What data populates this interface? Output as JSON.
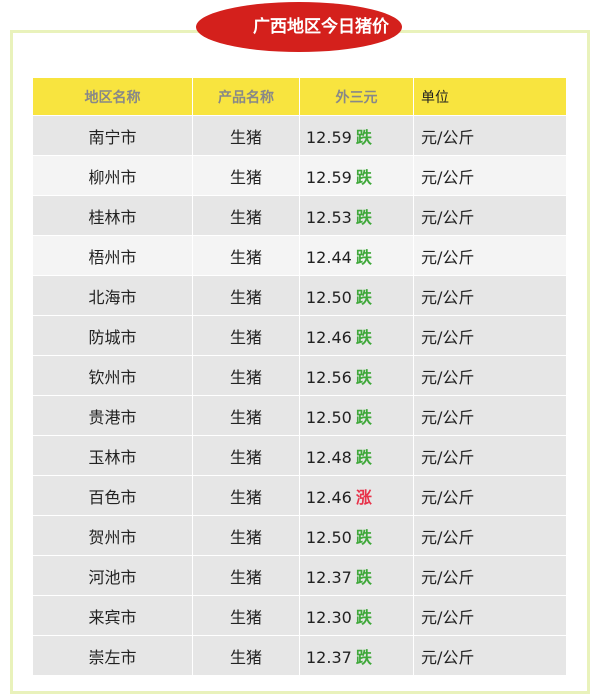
{
  "title": "广西地区今日猪价",
  "headers": [
    "地区名称",
    "产品名称",
    "外三元",
    "单位"
  ],
  "colors": {
    "down": "#3fa83a",
    "up": "#e8324a",
    "header_bg": "#f8e43f",
    "badge_bg": "#d4201c"
  },
  "rows": [
    {
      "region": "南宁市",
      "product": "生猪",
      "price": "12.59",
      "trend": "跌",
      "unit": "元/公斤"
    },
    {
      "region": "柳州市",
      "product": "生猪",
      "price": "12.59",
      "trend": "跌",
      "unit": "元/公斤"
    },
    {
      "region": "桂林市",
      "product": "生猪",
      "price": "12.53",
      "trend": "跌",
      "unit": "元/公斤"
    },
    {
      "region": "梧州市",
      "product": "生猪",
      "price": "12.44",
      "trend": "跌",
      "unit": "元/公斤"
    },
    {
      "region": "北海市",
      "product": "生猪",
      "price": "12.50",
      "trend": "跌",
      "unit": "元/公斤"
    },
    {
      "region": "防城市",
      "product": "生猪",
      "price": "12.46",
      "trend": "跌",
      "unit": "元/公斤"
    },
    {
      "region": "钦州市",
      "product": "生猪",
      "price": "12.56",
      "trend": "跌",
      "unit": "元/公斤"
    },
    {
      "region": "贵港市",
      "product": "生猪",
      "price": "12.50",
      "trend": "跌",
      "unit": "元/公斤"
    },
    {
      "region": "玉林市",
      "product": "生猪",
      "price": "12.48",
      "trend": "跌",
      "unit": "元/公斤"
    },
    {
      "region": "百色市",
      "product": "生猪",
      "price": "12.46",
      "trend": "涨",
      "unit": "元/公斤"
    },
    {
      "region": "贺州市",
      "product": "生猪",
      "price": "12.50",
      "trend": "跌",
      "unit": "元/公斤"
    },
    {
      "region": "河池市",
      "product": "生猪",
      "price": "12.37",
      "trend": "跌",
      "unit": "元/公斤"
    },
    {
      "region": "来宾市",
      "product": "生猪",
      "price": "12.30",
      "trend": "跌",
      "unit": "元/公斤"
    },
    {
      "region": "崇左市",
      "product": "生猪",
      "price": "12.37",
      "trend": "跌",
      "unit": "元/公斤"
    }
  ]
}
